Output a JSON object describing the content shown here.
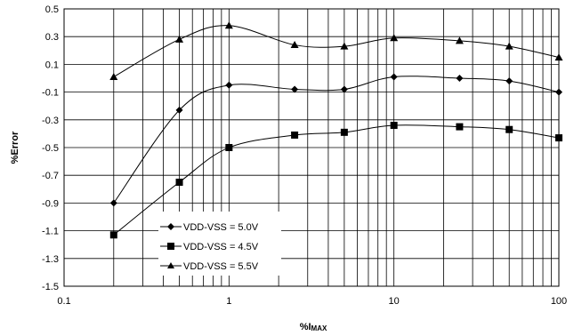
{
  "chart_data": {
    "type": "line",
    "xscale": "log",
    "xlim": [
      0.1,
      100
    ],
    "ylim": [
      -1.5,
      0.5
    ],
    "xticks": [
      "0.1",
      "1",
      "10",
      "100"
    ],
    "yticks": [
      "0.5",
      "0.3",
      "0.1",
      "-0.1",
      "-0.3",
      "-0.5",
      "-0.7",
      "-0.9",
      "-1.1",
      "-1.3",
      "-1.5"
    ],
    "ytick_values": [
      0.5,
      0.3,
      0.1,
      -0.1,
      -0.3,
      -0.5,
      -0.7,
      -0.9,
      -1.1,
      -1.3,
      -1.5
    ],
    "xlabel_main": "%I",
    "xlabel_sub": "MAX",
    "ylabel": "%Error",
    "grid": true,
    "legend_position": "bottom-left",
    "x": [
      0.2,
      0.5,
      1,
      2.5,
      5,
      10,
      25,
      50,
      100
    ],
    "series": [
      {
        "name": "VDD-VSS = 5.0V",
        "marker": "diamond",
        "values": [
          -0.9,
          -0.23,
          -0.05,
          -0.08,
          -0.08,
          0.01,
          0.0,
          -0.02,
          -0.1
        ]
      },
      {
        "name": "VDD-VSS = 4.5V",
        "marker": "square",
        "values": [
          -1.13,
          -0.75,
          -0.5,
          -0.41,
          -0.39,
          -0.34,
          -0.35,
          -0.37,
          -0.43
        ]
      },
      {
        "name": "VDD-VSS = 5.5V",
        "marker": "triangle",
        "values": [
          0.01,
          0.28,
          0.38,
          0.24,
          0.23,
          0.29,
          0.27,
          0.23,
          0.15
        ]
      }
    ]
  }
}
